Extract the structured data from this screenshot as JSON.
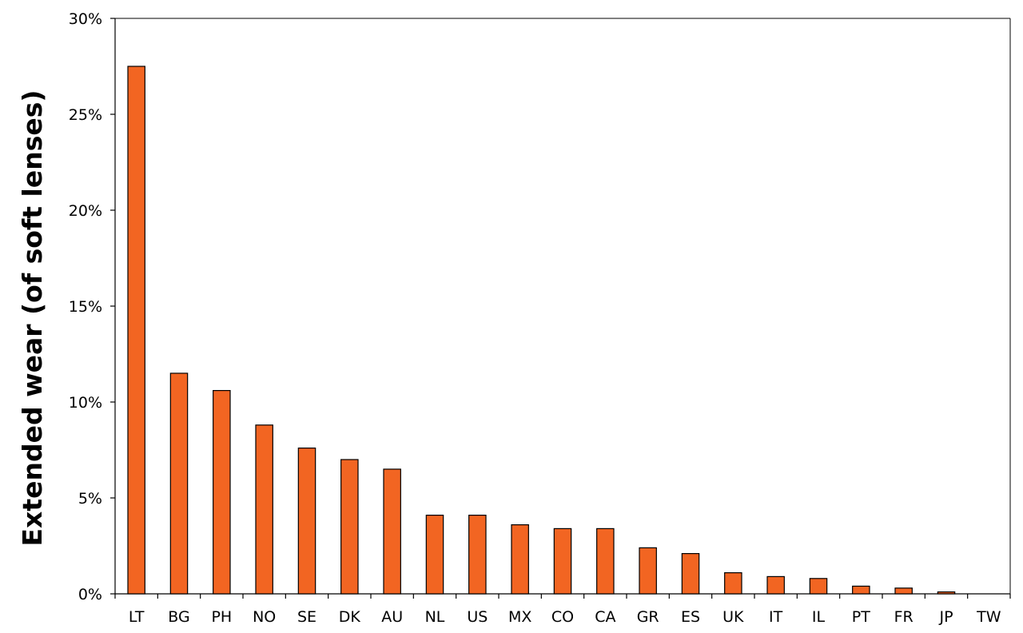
{
  "chart_data": {
    "type": "bar",
    "title": "",
    "xlabel": "",
    "ylabel": "Extended wear (of soft lenses)",
    "categories": [
      "LT",
      "BG",
      "PH",
      "NO",
      "SE",
      "DK",
      "AU",
      "NL",
      "US",
      "MX",
      "CO",
      "CA",
      "GR",
      "ES",
      "UK",
      "IT",
      "IL",
      "PT",
      "FR",
      "JP",
      "TW"
    ],
    "values": [
      27.5,
      11.5,
      10.6,
      8.8,
      7.6,
      7.0,
      6.5,
      4.1,
      4.1,
      3.6,
      3.4,
      3.4,
      2.4,
      2.1,
      1.1,
      0.9,
      0.8,
      0.4,
      0.3,
      0.1,
      0.0
    ],
    "ylim": [
      0,
      30
    ],
    "yticks": [
      0,
      5,
      10,
      15,
      20,
      25,
      30
    ],
    "ytick_labels": [
      "0%",
      "5%",
      "10%",
      "15%",
      "20%",
      "25%",
      "30%"
    ],
    "grid": false,
    "legend": "none",
    "bar_color": "#f26522",
    "bar_edge_color": "#000000"
  }
}
